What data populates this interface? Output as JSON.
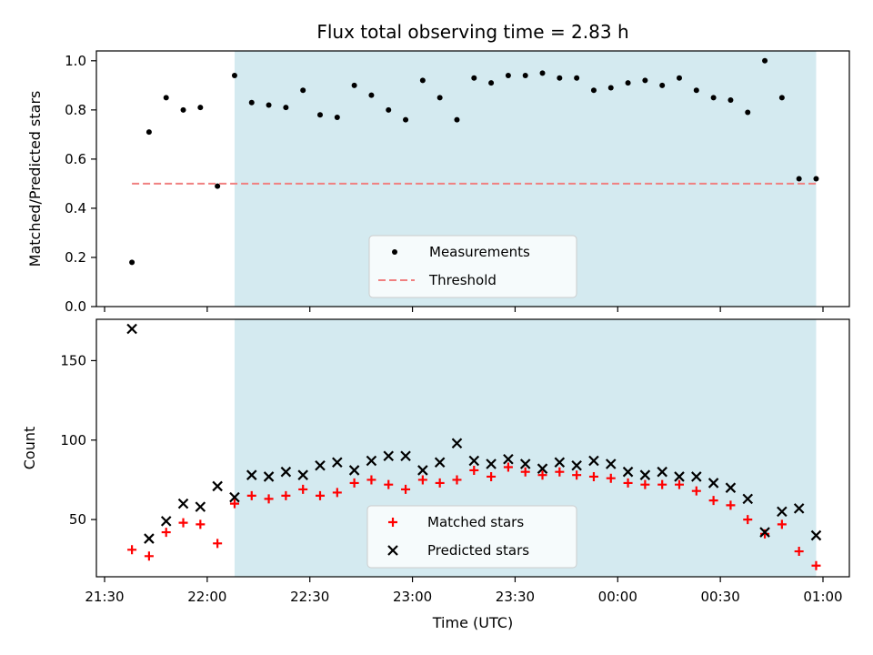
{
  "chart_data": [
    {
      "type": "scatter",
      "title": "Flux total observing time = 2.83 h",
      "xlabel": "",
      "ylabel": "Matched/Predicted stars",
      "ylim": [
        0.0,
        1.04
      ],
      "yticks": [
        0.0,
        0.2,
        0.4,
        0.6,
        0.8,
        1.0
      ],
      "ytick_labels": [
        "0.0",
        "0.2",
        "0.4",
        "0.6",
        "0.8",
        "1.0"
      ],
      "shaded_interval": [
        "22:08",
        "00:58"
      ],
      "shade_color": "#d4eaf0",
      "legend_position": "lower center",
      "series": [
        {
          "name": "Measurements",
          "marker": "dot",
          "color": "#000000",
          "times": [
            "21:38",
            "21:43",
            "21:48",
            "21:53",
            "21:58",
            "22:03",
            "22:08",
            "22:13",
            "22:18",
            "22:23",
            "22:28",
            "22:33",
            "22:38",
            "22:43",
            "22:48",
            "22:53",
            "22:58",
            "23:03",
            "23:08",
            "23:13",
            "23:18",
            "23:23",
            "23:28",
            "23:33",
            "23:38",
            "23:43",
            "23:48",
            "23:53",
            "23:58",
            "00:03",
            "00:08",
            "00:13",
            "00:18",
            "00:23",
            "00:28",
            "00:33",
            "00:38",
            "00:43",
            "00:48",
            "00:53",
            "00:58"
          ],
          "values": [
            0.18,
            0.71,
            0.85,
            0.8,
            0.81,
            0.49,
            0.94,
            0.83,
            0.82,
            0.81,
            0.88,
            0.78,
            0.77,
            0.9,
            0.86,
            0.8,
            0.76,
            0.92,
            0.85,
            0.76,
            0.93,
            0.91,
            0.94,
            0.94,
            0.95,
            0.93,
            0.93,
            0.88,
            0.89,
            0.91,
            0.92,
            0.9,
            0.93,
            0.88,
            0.85,
            0.84,
            0.79,
            1.0,
            0.85,
            0.52,
            0.52
          ]
        },
        {
          "name": "Threshold",
          "line": "dashed",
          "color": "#f08080",
          "times": [
            "21:38",
            "00:58"
          ],
          "values": [
            0.5,
            0.5
          ]
        }
      ]
    },
    {
      "type": "scatter",
      "title": "",
      "xlabel": "Time (UTC)",
      "ylabel": "Count",
      "ylim": [
        14,
        176
      ],
      "yticks": [
        50,
        100,
        150
      ],
      "ytick_labels": [
        "50",
        "100",
        "150"
      ],
      "xticks": [
        "21:30",
        "22:00",
        "22:30",
        "23:00",
        "23:30",
        "00:00",
        "00:30",
        "01:00"
      ],
      "shaded_interval": [
        "22:08",
        "00:58"
      ],
      "shade_color": "#d4eaf0",
      "legend_position": "lower center",
      "series": [
        {
          "name": "Matched stars",
          "marker": "plus",
          "color": "#ff0000",
          "times": [
            "21:38",
            "21:43",
            "21:48",
            "21:53",
            "21:58",
            "22:03",
            "22:08",
            "22:13",
            "22:18",
            "22:23",
            "22:28",
            "22:33",
            "22:38",
            "22:43",
            "22:48",
            "22:53",
            "22:58",
            "23:03",
            "23:08",
            "23:13",
            "23:18",
            "23:23",
            "23:28",
            "23:33",
            "23:38",
            "23:43",
            "23:48",
            "23:53",
            "23:58",
            "00:03",
            "00:08",
            "00:13",
            "00:18",
            "00:23",
            "00:28",
            "00:33",
            "00:38",
            "00:43",
            "00:48",
            "00:53",
            "00:58"
          ],
          "values": [
            31,
            27,
            42,
            48,
            47,
            35,
            60,
            65,
            63,
            65,
            69,
            65,
            67,
            73,
            75,
            72,
            69,
            75,
            73,
            75,
            81,
            77,
            83,
            80,
            78,
            80,
            78,
            77,
            76,
            73,
            72,
            72,
            72,
            68,
            62,
            59,
            50,
            41,
            47,
            30,
            21
          ]
        },
        {
          "name": "Predicted stars",
          "marker": "x",
          "color": "#000000",
          "times": [
            "21:38",
            "21:43",
            "21:48",
            "21:53",
            "21:58",
            "22:03",
            "22:08",
            "22:13",
            "22:18",
            "22:23",
            "22:28",
            "22:33",
            "22:38",
            "22:43",
            "22:48",
            "22:53",
            "22:58",
            "23:03",
            "23:08",
            "23:13",
            "23:18",
            "23:23",
            "23:28",
            "23:33",
            "23:38",
            "23:43",
            "23:48",
            "23:53",
            "23:58",
            "00:03",
            "00:08",
            "00:13",
            "00:18",
            "00:23",
            "00:28",
            "00:33",
            "00:38",
            "00:43",
            "00:48",
            "00:53",
            "00:58"
          ],
          "values": [
            170,
            38,
            49,
            60,
            58,
            71,
            64,
            78,
            77,
            80,
            78,
            84,
            86,
            81,
            87,
            90,
            90,
            81,
            86,
            98,
            87,
            85,
            88,
            85,
            82,
            86,
            84,
            87,
            85,
            80,
            78,
            80,
            77,
            77,
            73,
            70,
            63,
            42,
            55,
            57,
            40
          ]
        }
      ]
    }
  ]
}
